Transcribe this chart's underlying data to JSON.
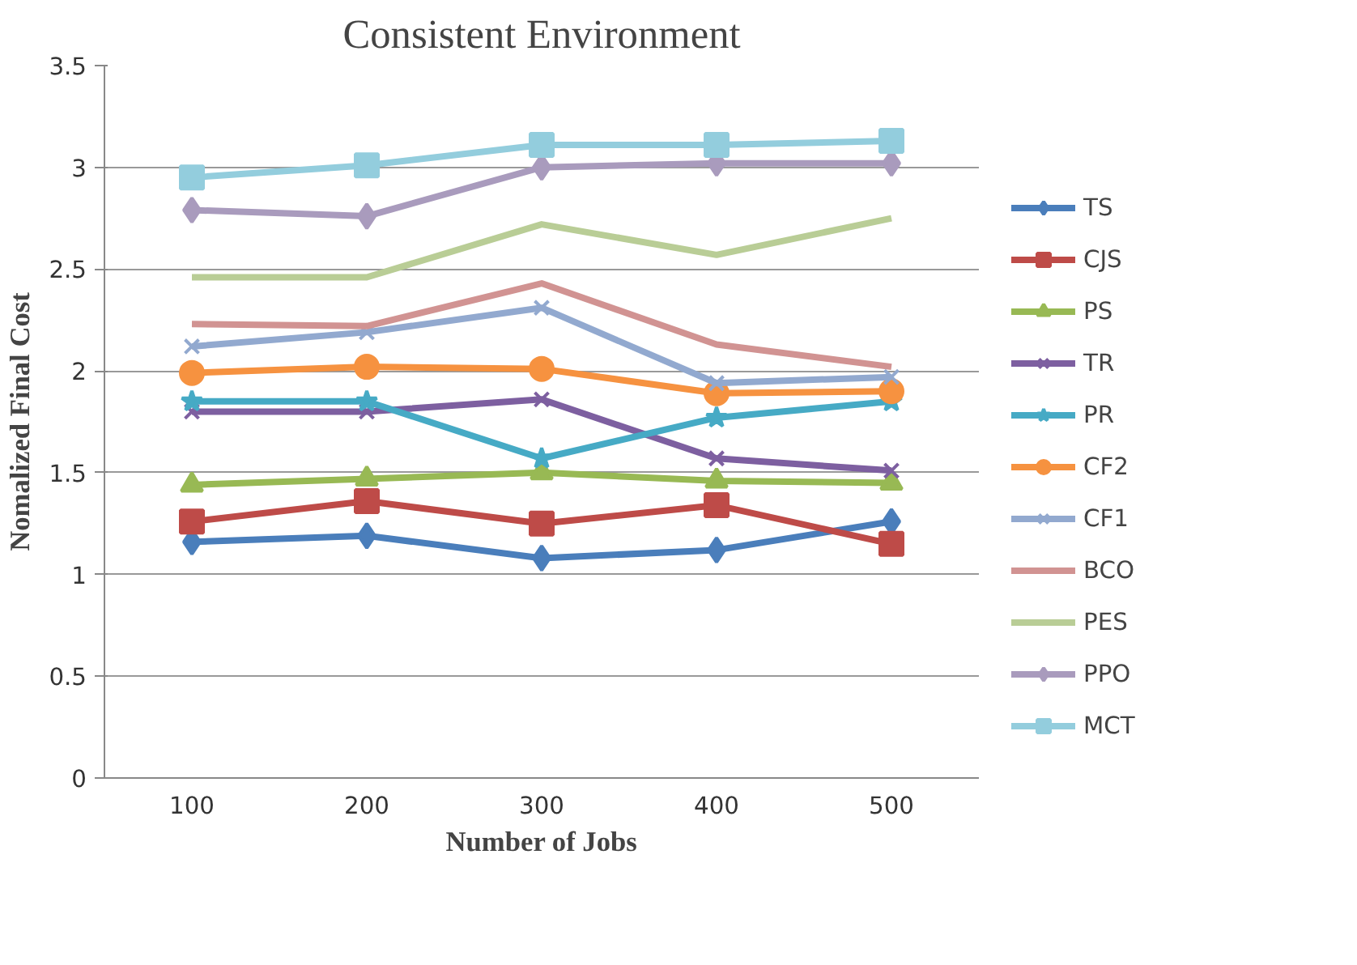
{
  "chart_data": {
    "type": "line",
    "title": "Consistent Environment",
    "xlabel": "Number of Jobs",
    "ylabel": "Nomalized Final Cost",
    "categories": [
      "100",
      "200",
      "300",
      "400",
      "500"
    ],
    "ylim": [
      0,
      3.5
    ],
    "yticks": [
      0,
      {
        "value": 0.5,
        "label": "0.5"
      },
      1,
      {
        "value": 1.5,
        "label": "1.5"
      },
      2,
      {
        "value": 2.5,
        "label": "2.5"
      },
      3,
      {
        "value": 3.5,
        "label": "3.5"
      }
    ],
    "grid": "y",
    "legend": "right",
    "series": [
      {
        "name": "TS",
        "color": "#4a7ebb",
        "marker": "diamond",
        "values": [
          1.16,
          1.19,
          1.08,
          1.12,
          1.26
        ]
      },
      {
        "name": "CJS",
        "color": "#be4b48",
        "marker": "square",
        "values": [
          1.26,
          1.36,
          1.25,
          1.34,
          1.15
        ]
      },
      {
        "name": "PS",
        "color": "#98b954",
        "marker": "triangle",
        "values": [
          1.44,
          1.47,
          1.5,
          1.46,
          1.45
        ]
      },
      {
        "name": "TR",
        "color": "#7d5fa0",
        "marker": "cross",
        "values": [
          1.8,
          1.8,
          1.86,
          1.57,
          1.51
        ]
      },
      {
        "name": "PR",
        "color": "#46aac5",
        "marker": "star",
        "values": [
          1.85,
          1.85,
          1.57,
          1.77,
          1.85
        ]
      },
      {
        "name": "CF2",
        "color": "#f69240",
        "marker": "circle",
        "values": [
          1.99,
          2.02,
          2.01,
          1.89,
          1.9
        ]
      },
      {
        "name": "CF1",
        "color": "#92a9cf",
        "marker": "cross",
        "values": [
          2.12,
          2.19,
          2.31,
          1.94,
          1.97
        ]
      },
      {
        "name": "BCO",
        "color": "#d19392",
        "marker": "none",
        "values": [
          2.23,
          2.22,
          2.43,
          2.13,
          2.02
        ]
      },
      {
        "name": "PES",
        "color": "#b9cd96",
        "marker": "none",
        "values": [
          2.46,
          2.46,
          2.72,
          2.57,
          2.75
        ]
      },
      {
        "name": "PPO",
        "color": "#a99bbd",
        "marker": "diamond",
        "values": [
          2.79,
          2.76,
          3.0,
          3.02,
          3.02
        ]
      },
      {
        "name": "MCT",
        "color": "#93cddd",
        "marker": "square",
        "values": [
          2.95,
          3.01,
          3.11,
          3.11,
          3.13
        ]
      }
    ]
  }
}
